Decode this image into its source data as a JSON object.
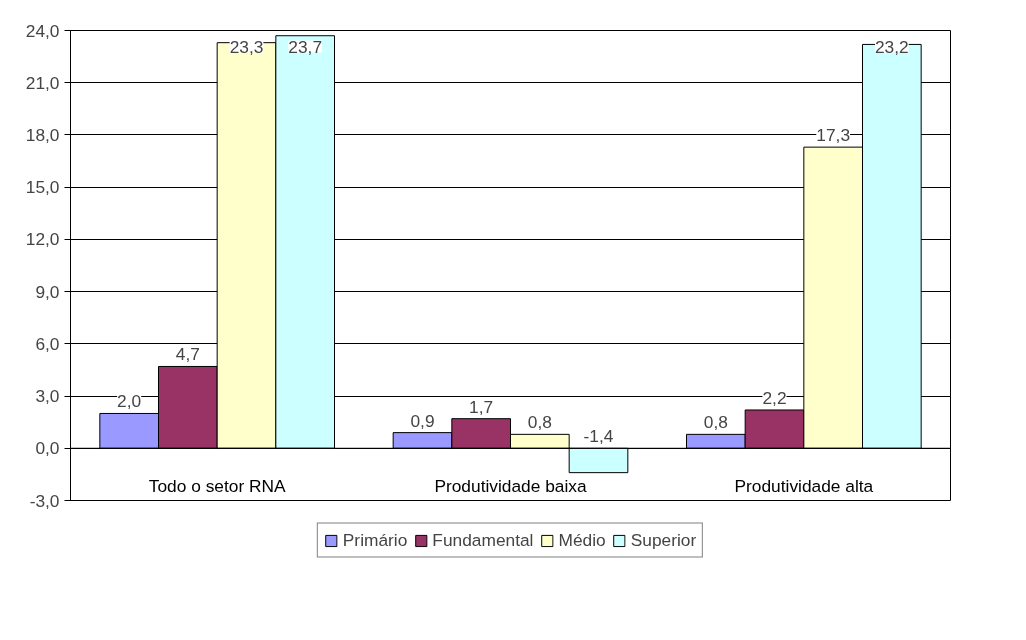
{
  "chart_data": {
    "type": "bar",
    "categories": [
      "Todo o setor RNA",
      "Produtividade baixa",
      "Produtividade alta"
    ],
    "series": [
      {
        "name": "Primário",
        "color": "#9999ff",
        "values": [
          2.0,
          0.9,
          0.8
        ],
        "value_labels": [
          "2,0",
          "0,9",
          "0,8"
        ]
      },
      {
        "name": "Fundamental",
        "color": "#993366",
        "values": [
          4.7,
          1.7,
          2.2
        ],
        "value_labels": [
          "4,7",
          "1,7",
          "2,2"
        ]
      },
      {
        "name": "Médio",
        "color": "#ffffcc",
        "values": [
          23.3,
          0.8,
          17.3
        ],
        "value_labels": [
          "23,3",
          "0,8",
          "17,3"
        ]
      },
      {
        "name": "Superior",
        "color": "#ccffff",
        "values": [
          23.7,
          -1.4,
          23.2
        ],
        "value_labels": [
          "23,7",
          "-1,4",
          "23,2"
        ]
      }
    ],
    "ylim": [
      -3,
      24
    ],
    "yticks": [
      {
        "value": -3,
        "label": "-3,0"
      },
      {
        "value": 0,
        "label": "0,0"
      },
      {
        "value": 3,
        "label": "3,0"
      },
      {
        "value": 6,
        "label": "6,0"
      },
      {
        "value": 9,
        "label": "9,0"
      },
      {
        "value": 12,
        "label": "12,0"
      },
      {
        "value": 15,
        "label": "15,0"
      },
      {
        "value": 18,
        "label": "18,0"
      },
      {
        "value": 21,
        "label": "21,0"
      },
      {
        "value": 24,
        "label": "24,0"
      }
    ],
    "grid": "y",
    "legend": "bottom"
  }
}
